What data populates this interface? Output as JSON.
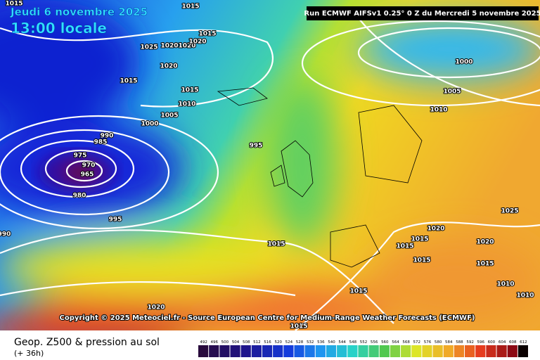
{
  "header": {
    "date": "Jeudi 6 novembre 2025",
    "time": "13:00 locale",
    "run": "Run ECMWF AIFSv1 0.25° 0 Z du Mercredi 5 novembre 2025"
  },
  "map": {
    "isobar_labels": [
      1015,
      1015,
      1015,
      1025,
      1020,
      1020,
      1020,
      1020,
      1015,
      1015,
      1010,
      1005,
      1000,
      990,
      985,
      975,
      970,
      965,
      980,
      995,
      995,
      990,
      1015,
      1020,
      1015,
      1015,
      1000,
      1005,
      1010,
      1025,
      1020,
      1015,
      1015,
      1020,
      1015,
      1015,
      1010,
      1010
    ],
    "copyright": "Copyright © 2025 Meteociel.fr - Source European Centre for Medium-Range Weather Forecasts (ECMWF)"
  },
  "footer": {
    "title": "Geop. Z500 & pression au sol",
    "lead": "(+ 36h)",
    "scale": [
      492,
      496,
      500,
      504,
      508,
      512,
      516,
      520,
      524,
      528,
      532,
      536,
      540,
      544,
      548,
      552,
      556,
      560,
      564,
      568,
      572,
      576,
      580,
      584,
      588,
      592,
      596,
      600,
      604,
      608,
      612
    ]
  }
}
